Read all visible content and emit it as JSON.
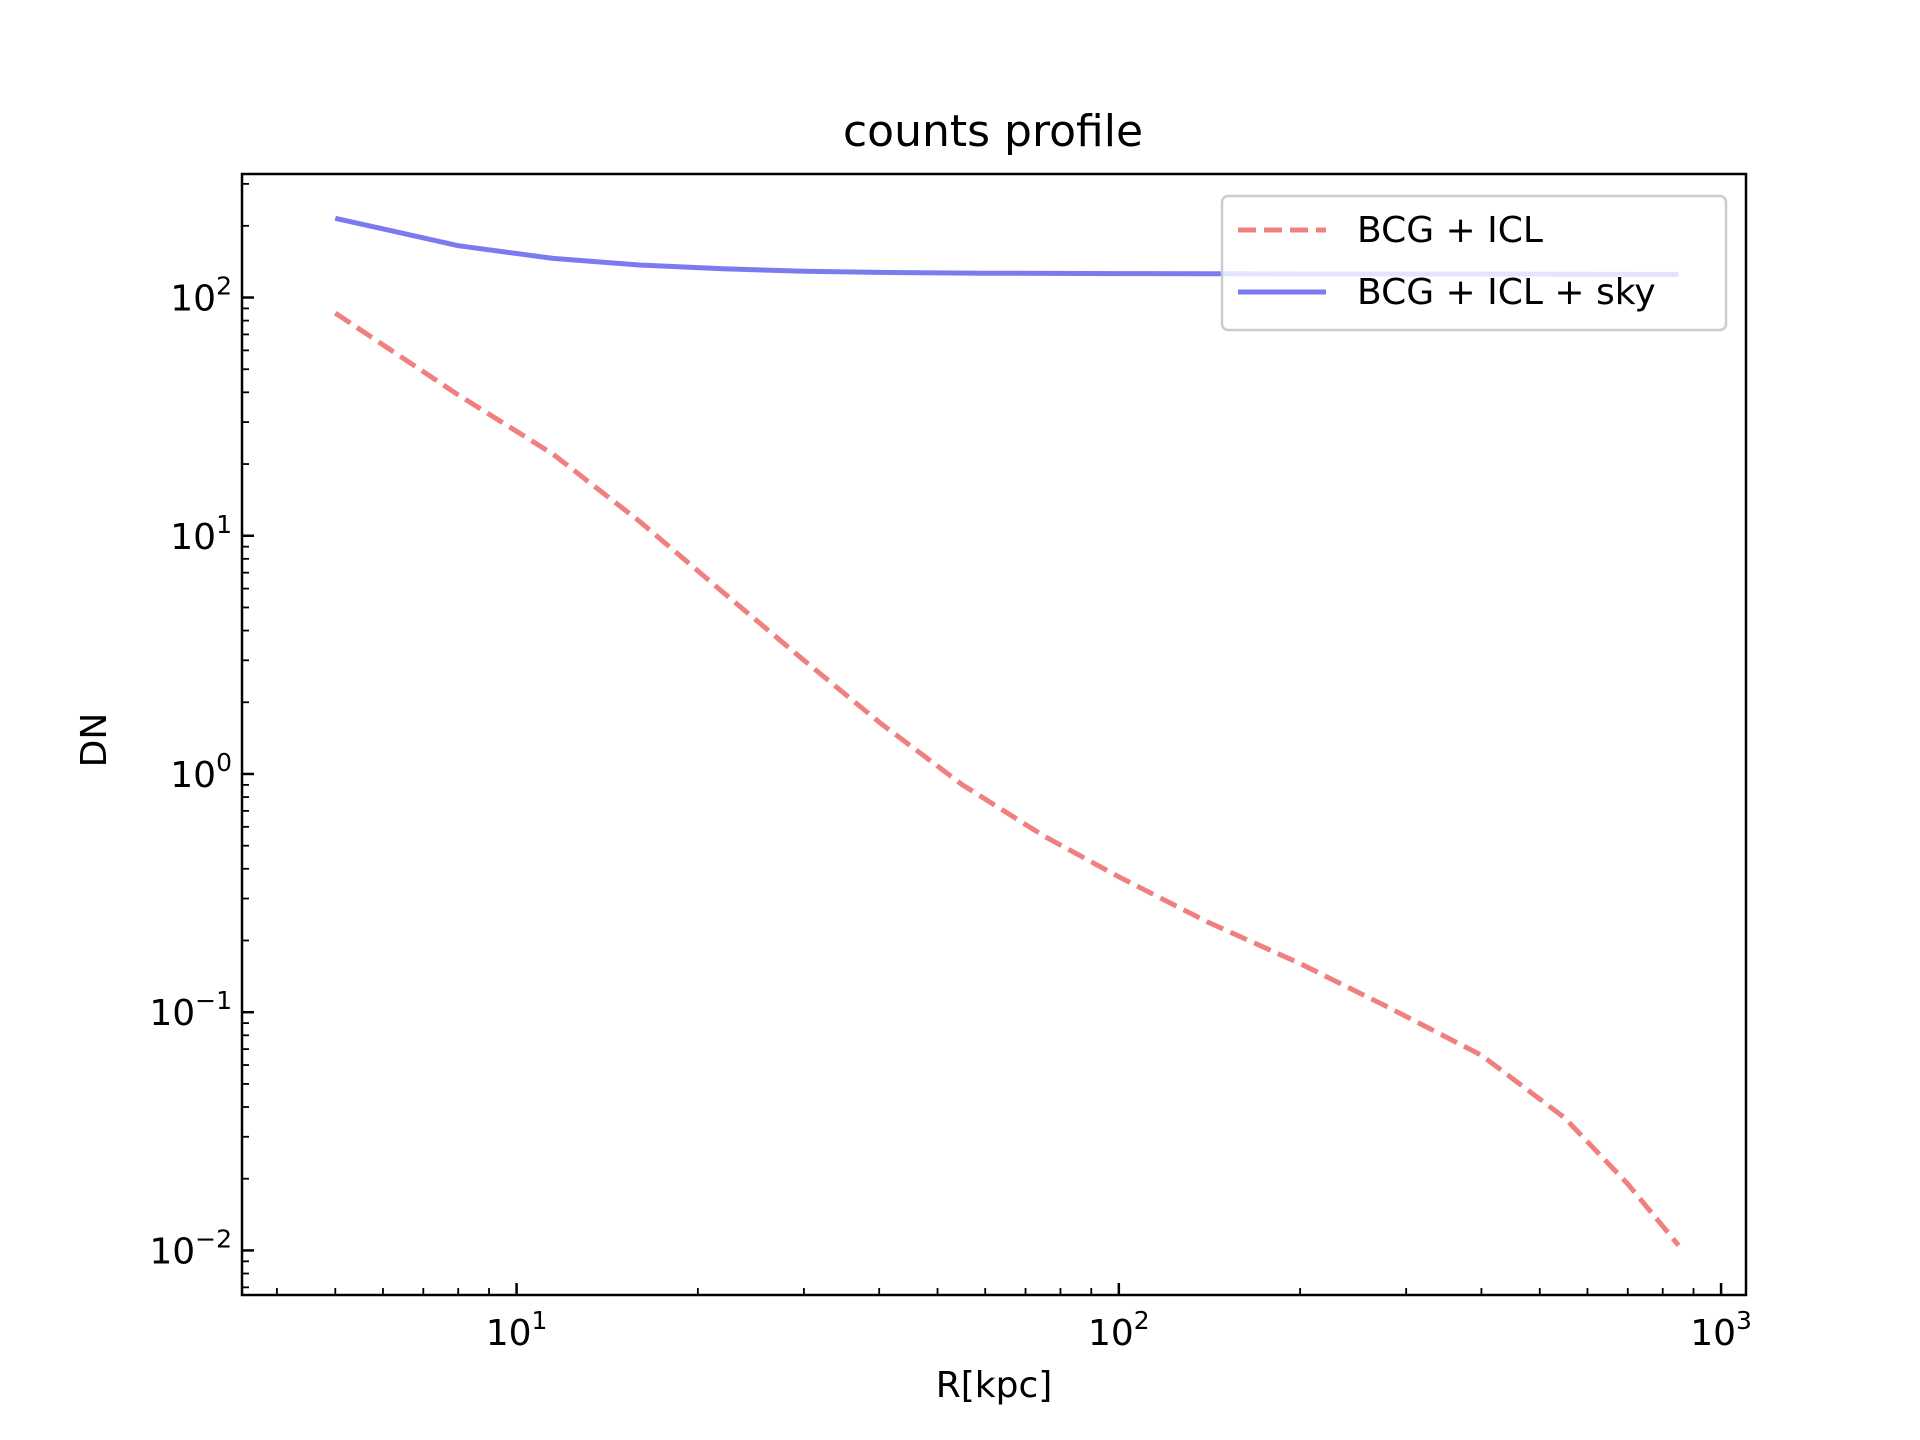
{
  "chart_data": {
    "type": "line",
    "title": "counts profile",
    "xlabel": "R[kpc]",
    "ylabel": "DN",
    "xscale": "log",
    "yscale": "log",
    "xlim": [
      3.5,
      1100
    ],
    "ylim": [
      0.0065,
      330
    ],
    "grid": false,
    "legend_position": "top-right",
    "x_ticks": [
      {
        "value": 10,
        "base": "10",
        "exp": "1"
      },
      {
        "value": 100,
        "base": "10",
        "exp": "2"
      },
      {
        "value": 1000,
        "base": "10",
        "exp": "3"
      }
    ],
    "y_ticks": [
      {
        "value": 0.01,
        "base": "10",
        "exp": "−2"
      },
      {
        "value": 0.1,
        "base": "10",
        "exp": "−1"
      },
      {
        "value": 1,
        "base": "10",
        "exp": "0"
      },
      {
        "value": 10,
        "base": "10",
        "exp": "1"
      },
      {
        "value": 100,
        "base": "10",
        "exp": "2"
      }
    ],
    "series": [
      {
        "name": "BCG + ICL",
        "color": "#f08080",
        "style": "dashed",
        "x": [
          5,
          8,
          11.5,
          16,
          22,
          30,
          40,
          55,
          75,
          100,
          140,
          200,
          280,
          400,
          550,
          700,
          850
        ],
        "y": [
          86,
          39,
          22,
          11.5,
          5.8,
          3.0,
          1.65,
          0.9,
          0.55,
          0.37,
          0.24,
          0.16,
          0.105,
          0.066,
          0.036,
          0.019,
          0.0105
        ]
      },
      {
        "name": "BCG + ICL + sky",
        "color": "#7b7bf0",
        "style": "solid",
        "x": [
          5,
          8,
          11.5,
          16,
          22,
          30,
          40,
          60,
          100,
          200,
          400,
          850
        ],
        "y": [
          215,
          165,
          146,
          137,
          132,
          129,
          127.5,
          126.5,
          126,
          125.5,
          125.5,
          125
        ]
      }
    ]
  }
}
